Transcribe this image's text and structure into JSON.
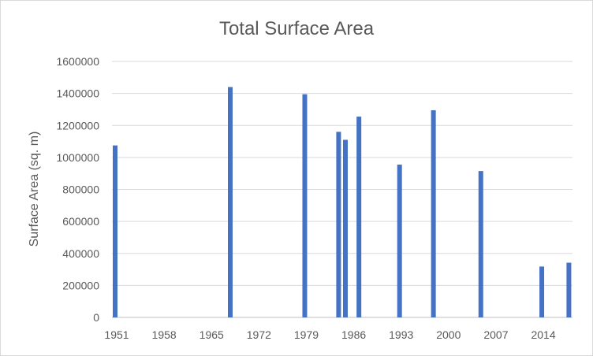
{
  "chart_data": {
    "type": "bar",
    "title": "Total Surface Area",
    "xlabel": "",
    "ylabel": "Surface Area (sq. m)",
    "xlim": [
      1951,
      2019
    ],
    "ylim": [
      0,
      1600000
    ],
    "yticks": [
      0,
      200000,
      400000,
      600000,
      800000,
      1000000,
      1200000,
      1400000,
      1600000
    ],
    "ytick_labels": [
      "0",
      "200000",
      "400000",
      "600000",
      "800000",
      "1000000",
      "1200000",
      "1400000",
      "1600000"
    ],
    "xticks": [
      1951,
      1958,
      1965,
      1972,
      1979,
      1986,
      1993,
      2000,
      2007,
      2014
    ],
    "xtick_labels": [
      "1951",
      "1958",
      "1965",
      "1972",
      "1979",
      "1986",
      "1993",
      "2000",
      "2007",
      "2014"
    ],
    "grid": true,
    "legend": "none",
    "bar_color": "#4472c4",
    "x": [
      1951,
      1968,
      1979,
      1984,
      1985,
      1987,
      1993,
      1998,
      2005,
      2014,
      2018
    ],
    "values": [
      1075000,
      1440000,
      1395000,
      1160000,
      1110000,
      1255000,
      955000,
      1295000,
      915000,
      318000,
      342000
    ]
  }
}
